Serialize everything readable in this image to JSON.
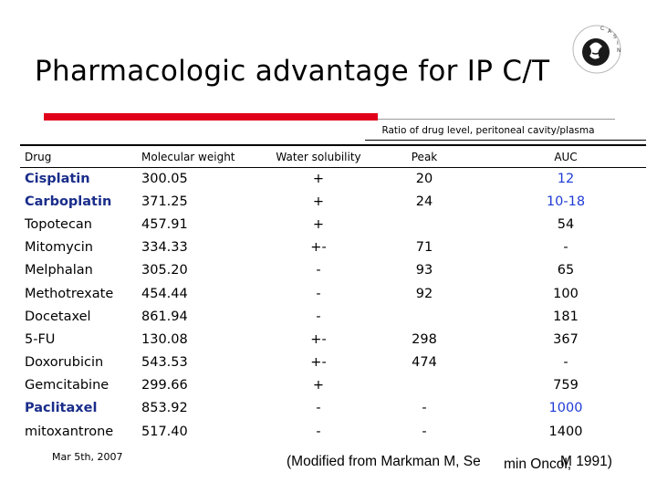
{
  "slide": {
    "title": "Pharmacologic advantage for IP C/T",
    "logo_text": "CASIN",
    "ratio_label": "Ratio of drug level, peritoneal cavity/plasma",
    "date": "Mar 5th, 2007",
    "citation_left": "(Modified from Markman M, Se",
    "citation_overlap": "min Oncol,",
    "citation_right": "M 1991)"
  },
  "table": {
    "headers": {
      "drug": "Drug",
      "mw": "Molecular weight",
      "ws": "Water solubility",
      "peak": "Peak",
      "auc": "AUC"
    },
    "rows": [
      {
        "drug": "Cisplatin",
        "mw": "300.05",
        "ws": "+",
        "peak": "20",
        "auc": "12"
      },
      {
        "drug": "Carboplatin",
        "mw": "371.25",
        "ws": "+",
        "peak": "24",
        "auc": "10-18"
      },
      {
        "drug": "Topotecan",
        "mw": "457.91",
        "ws": "+",
        "peak": "",
        "auc": "54"
      },
      {
        "drug": "Mitomycin",
        "mw": "334.33",
        "ws": "+-",
        "peak": "71",
        "auc": "-"
      },
      {
        "drug": "Melphalan",
        "mw": "305.20",
        "ws": "-",
        "peak": "93",
        "auc": "65"
      },
      {
        "drug": "Methotrexate",
        "mw": "454.44",
        "ws": "-",
        "peak": "92",
        "auc": "100"
      },
      {
        "drug": "Docetaxel",
        "mw": "861.94",
        "ws": "-",
        "peak": "",
        "auc": "181"
      },
      {
        "drug": "5-FU",
        "mw": "130.08",
        "ws": "+-",
        "peak": "298",
        "auc": "367"
      },
      {
        "drug": "Doxorubicin",
        "mw": "543.53",
        "ws": "+-",
        "peak": "474",
        "auc": "-"
      },
      {
        "drug": "Gemcitabine",
        "mw": "299.66",
        "ws": "+",
        "peak": "",
        "auc": "759"
      },
      {
        "drug": "Paclitaxel",
        "mw": "853.92",
        "ws": "-",
        "peak": "-",
        "auc": "1000"
      },
      {
        "drug": "mitoxantrone",
        "mw": "517.40",
        "ws": "-",
        "peak": "-",
        "auc": "1400"
      }
    ]
  },
  "highlight": {
    "drug_color": "#1a2d8a",
    "auc_color": "#1f3bd6",
    "rule_red": "#e0001a"
  }
}
